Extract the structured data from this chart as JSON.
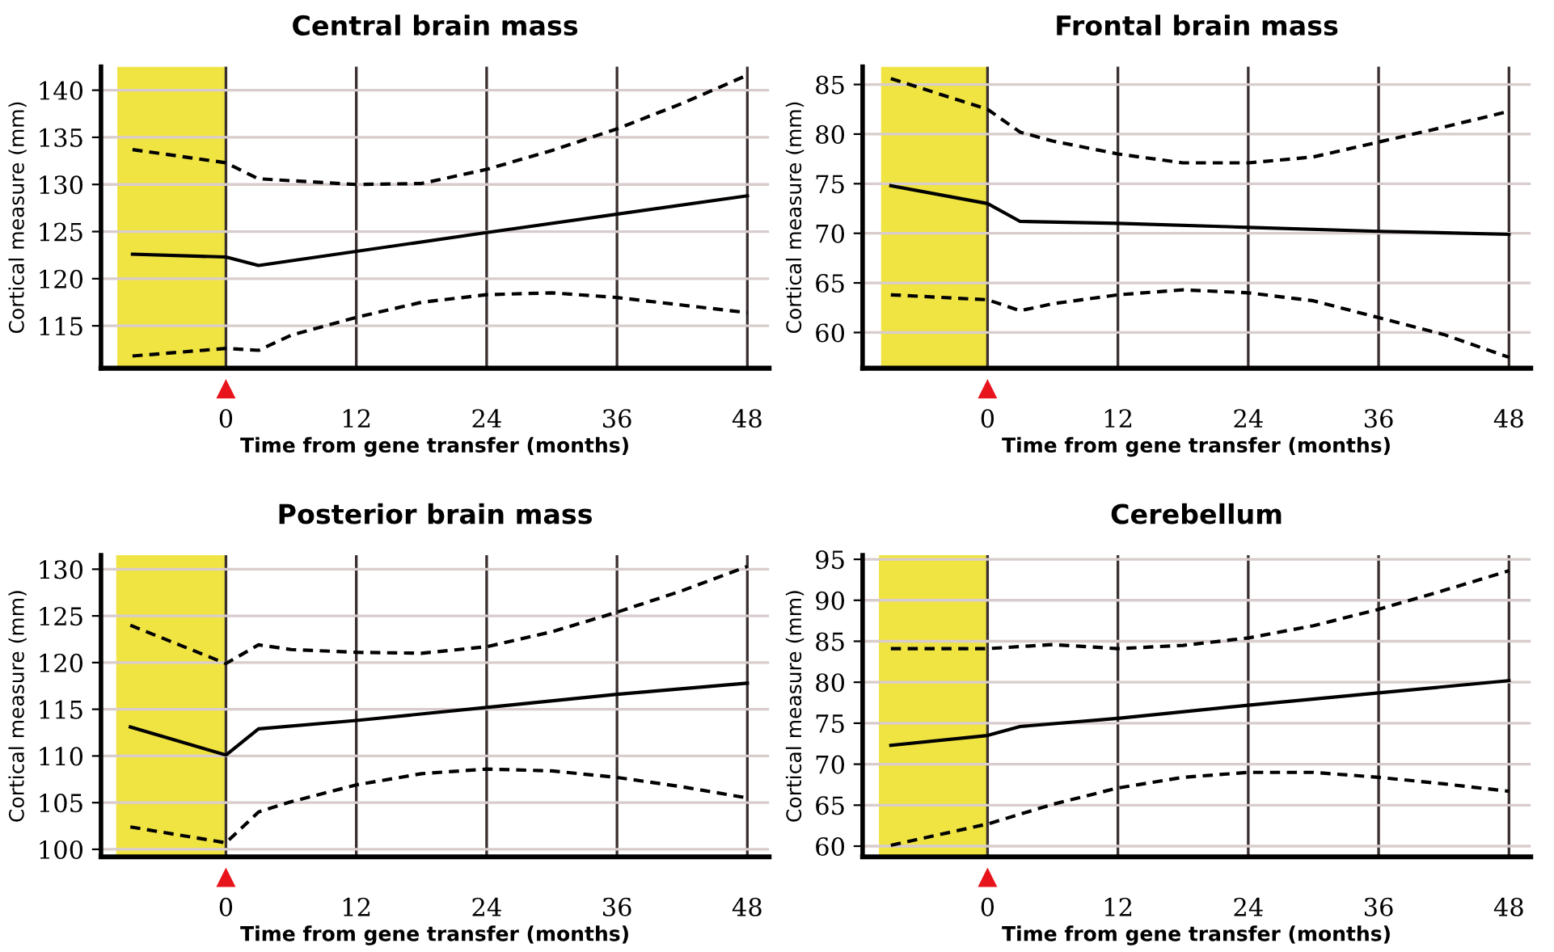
{
  "chart_data": [
    {
      "type": "line",
      "title": "Central brain mass",
      "xlabel": "Time from gene transfer (months)",
      "ylabel": "Cortical measure (mm)",
      "xlim": [
        -11.5,
        50
      ],
      "xticks": [
        0,
        12,
        24,
        36,
        48
      ],
      "ylim": [
        110.5,
        142.5
      ],
      "yticks": [
        115,
        120,
        125,
        130,
        135,
        140
      ],
      "grid": true,
      "bands": [
        {
          "axis": "x",
          "from": -10,
          "to": 0,
          "color": "#f0e442"
        }
      ],
      "series": [
        {
          "color": "#000000",
          "line_style": "solid",
          "x": [
            -8.6,
            0,
            3,
            24,
            48
          ],
          "values": [
            122.6,
            122.3,
            121.4,
            124.9,
            128.8
          ]
        },
        {
          "color": "#000000",
          "line_style": "dashed",
          "x": [
            -8.6,
            0,
            3,
            12,
            18,
            24,
            30,
            36,
            42,
            48
          ],
          "values": [
            133.7,
            132.3,
            130.6,
            130.0,
            130.1,
            131.6,
            133.6,
            135.9,
            138.6,
            141.6
          ]
        },
        {
          "color": "#000000",
          "line_style": "dashed",
          "x": [
            -8.6,
            0,
            3,
            6,
            12,
            18,
            24,
            30,
            36,
            42,
            48
          ],
          "values": [
            111.8,
            112.6,
            112.4,
            114.0,
            115.9,
            117.5,
            118.3,
            118.5,
            118.0,
            117.2,
            116.4
          ]
        }
      ]
    },
    {
      "type": "line",
      "title": "Frontal brain mass",
      "xlabel": "Time from gene transfer (months)",
      "ylabel": "Cortical measure (mm)",
      "xlim": [
        -11.5,
        50
      ],
      "xticks": [
        0,
        12,
        24,
        36,
        48
      ],
      "ylim": [
        56.4,
        86.8
      ],
      "yticks": [
        60,
        65,
        70,
        75,
        80,
        85
      ],
      "grid": true,
      "bands": [
        {
          "axis": "x",
          "from": -9.8,
          "to": 0,
          "color": "#f0e442"
        }
      ],
      "series": [
        {
          "color": "#000000",
          "line_style": "solid",
          "x": [
            -8.9,
            0,
            3,
            12,
            24,
            36,
            48
          ],
          "values": [
            74.8,
            73.0,
            71.2,
            71.0,
            70.6,
            70.2,
            69.9
          ]
        },
        {
          "color": "#000000",
          "line_style": "dashed",
          "x": [
            -8.9,
            0,
            3,
            6,
            12,
            18,
            24,
            30,
            36,
            42,
            48
          ],
          "values": [
            85.6,
            82.5,
            80.2,
            79.3,
            78.0,
            77.1,
            77.1,
            77.7,
            79.2,
            80.7,
            82.3
          ]
        },
        {
          "color": "#000000",
          "line_style": "dashed",
          "x": [
            -8.9,
            0,
            3,
            6,
            12,
            18,
            24,
            30,
            36,
            42,
            48
          ],
          "values": [
            63.8,
            63.3,
            62.2,
            62.9,
            63.8,
            64.3,
            64.0,
            63.2,
            61.5,
            59.8,
            57.5
          ]
        }
      ]
    },
    {
      "type": "line",
      "title": "Posterior brain mass",
      "xlabel": "Time from gene transfer (months)",
      "ylabel": "Cortical measure (mm)",
      "xlim": [
        -11.5,
        50
      ],
      "xticks": [
        0,
        12,
        24,
        36,
        48
      ],
      "ylim": [
        99.2,
        131.5
      ],
      "yticks": [
        100,
        105,
        110,
        115,
        120,
        125,
        130
      ],
      "grid": true,
      "bands": [
        {
          "axis": "x",
          "from": -10.1,
          "to": 0,
          "color": "#f0e442"
        }
      ],
      "series": [
        {
          "color": "#000000",
          "line_style": "solid",
          "x": [
            -8.8,
            0,
            3,
            12,
            24,
            36,
            48
          ],
          "values": [
            113.1,
            110.1,
            112.9,
            113.8,
            115.2,
            116.6,
            117.8
          ]
        },
        {
          "color": "#000000",
          "line_style": "dashed",
          "x": [
            -8.8,
            0,
            3,
            6,
            12,
            18,
            24,
            30,
            36,
            42,
            48
          ],
          "values": [
            124.0,
            119.9,
            121.9,
            121.4,
            121.1,
            121.0,
            121.7,
            123.3,
            125.4,
            127.7,
            130.3
          ]
        },
        {
          "color": "#000000",
          "line_style": "dashed",
          "x": [
            -8.8,
            0,
            3,
            6,
            12,
            18,
            24,
            30,
            36,
            42,
            48
          ],
          "values": [
            102.4,
            100.7,
            104.0,
            105.1,
            106.9,
            108.1,
            108.6,
            108.4,
            107.7,
            106.7,
            105.5
          ]
        }
      ]
    },
    {
      "type": "line",
      "title": "Cerebellum",
      "xlabel": "Time from gene transfer (months)",
      "ylabel": "Cortical measure (mm)",
      "xlim": [
        -11.5,
        50
      ],
      "xticks": [
        0,
        12,
        24,
        36,
        48
      ],
      "ylim": [
        58.7,
        95.5
      ],
      "yticks": [
        60,
        65,
        70,
        75,
        80,
        85,
        90,
        95
      ],
      "grid": true,
      "bands": [
        {
          "axis": "x",
          "from": -10,
          "to": 0,
          "color": "#f0e442"
        }
      ],
      "series": [
        {
          "color": "#000000",
          "line_style": "solid",
          "x": [
            -8.9,
            0,
            3,
            12,
            24,
            36,
            48
          ],
          "values": [
            72.3,
            73.5,
            74.6,
            75.6,
            77.2,
            78.7,
            80.2
          ]
        },
        {
          "color": "#000000",
          "line_style": "dashed",
          "x": [
            -8.9,
            0,
            6,
            12,
            18,
            24,
            30,
            36,
            42,
            48
          ],
          "values": [
            84.1,
            84.1,
            84.6,
            84.1,
            84.5,
            85.4,
            86.9,
            88.9,
            91.2,
            93.6
          ]
        },
        {
          "color": "#000000",
          "line_style": "dashed",
          "x": [
            -8.9,
            0,
            6,
            12,
            18,
            24,
            30,
            36,
            42,
            48
          ],
          "values": [
            60.1,
            62.7,
            65.1,
            67.1,
            68.4,
            69.0,
            69.0,
            68.4,
            67.6,
            66.7
          ]
        }
      ]
    }
  ]
}
